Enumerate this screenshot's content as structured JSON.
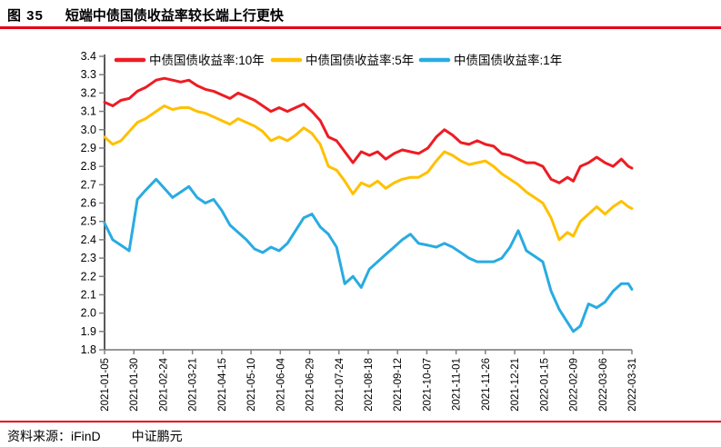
{
  "header": {
    "figure_label": "图 35",
    "title": "短端中债国债收益率较长端上行更快"
  },
  "footer": {
    "source": "资料来源：iFinD",
    "brand": "中证鹏元"
  },
  "colors": {
    "rule_red": "#E60012",
    "axis_line": "#595959",
    "tick_mark": "#808080",
    "label_text": "#000000",
    "background": "#FFFFFF"
  },
  "chart_data": {
    "type": "line",
    "title": "",
    "xlabel": "",
    "ylabel": "",
    "ylim": [
      1.8,
      3.4
    ],
    "y_tick_step": 0.1,
    "grid": false,
    "legend_position": "top",
    "x_tick_labels": [
      "2021-01-05",
      "2021-01-30",
      "2021-02-24",
      "2021-03-21",
      "2021-04-15",
      "2021-05-10",
      "2021-06-04",
      "2021-06-29",
      "2021-07-24",
      "2021-08-18",
      "2021-09-12",
      "2021-10-07",
      "2021-11-01",
      "2021-11-26",
      "2021-12-21",
      "2022-01-15",
      "2022-02-09",
      "2022-03-06",
      "2022-03-31"
    ],
    "dates": [
      "2021-01-05",
      "2021-01-12",
      "2021-01-19",
      "2021-01-26",
      "2021-02-02",
      "2021-02-09",
      "2021-02-18",
      "2021-02-25",
      "2021-03-04",
      "2021-03-11",
      "2021-03-18",
      "2021-03-25",
      "2021-04-01",
      "2021-04-08",
      "2021-04-15",
      "2021-04-22",
      "2021-04-29",
      "2021-05-06",
      "2021-05-13",
      "2021-05-20",
      "2021-05-27",
      "2021-06-03",
      "2021-06-10",
      "2021-06-17",
      "2021-06-24",
      "2021-07-01",
      "2021-07-08",
      "2021-07-15",
      "2021-07-22",
      "2021-07-29",
      "2021-08-05",
      "2021-08-12",
      "2021-08-19",
      "2021-08-26",
      "2021-09-02",
      "2021-09-09",
      "2021-09-16",
      "2021-09-23",
      "2021-09-30",
      "2021-10-08",
      "2021-10-15",
      "2021-10-22",
      "2021-10-29",
      "2021-11-05",
      "2021-11-12",
      "2021-11-19",
      "2021-11-26",
      "2021-12-03",
      "2021-12-10",
      "2021-12-17",
      "2021-12-24",
      "2021-12-31",
      "2022-01-07",
      "2022-01-14",
      "2022-01-21",
      "2022-01-28",
      "2022-02-04",
      "2022-02-09",
      "2022-02-15",
      "2022-02-22",
      "2022-03-01",
      "2022-03-08",
      "2022-03-15",
      "2022-03-22",
      "2022-03-28",
      "2022-03-31"
    ],
    "series": [
      {
        "name": "中债国债收益率:10年",
        "color": "#ED1C24",
        "values": [
          3.15,
          3.13,
          3.16,
          3.17,
          3.21,
          3.23,
          3.27,
          3.28,
          3.27,
          3.26,
          3.27,
          3.24,
          3.22,
          3.21,
          3.19,
          3.17,
          3.2,
          3.18,
          3.16,
          3.13,
          3.1,
          3.12,
          3.1,
          3.12,
          3.14,
          3.1,
          3.05,
          2.96,
          2.94,
          2.88,
          2.82,
          2.88,
          2.86,
          2.88,
          2.84,
          2.87,
          2.89,
          2.88,
          2.87,
          2.9,
          2.96,
          3.0,
          2.97,
          2.93,
          2.92,
          2.94,
          2.92,
          2.91,
          2.87,
          2.86,
          2.84,
          2.82,
          2.82,
          2.8,
          2.73,
          2.71,
          2.74,
          2.72,
          2.8,
          2.82,
          2.85,
          2.82,
          2.8,
          2.84,
          2.8,
          2.79
        ]
      },
      {
        "name": "中债国债收益率:5年",
        "color": "#FFC000",
        "values": [
          2.96,
          2.92,
          2.94,
          2.99,
          3.04,
          3.06,
          3.1,
          3.13,
          3.11,
          3.12,
          3.12,
          3.1,
          3.09,
          3.07,
          3.05,
          3.03,
          3.06,
          3.04,
          3.02,
          2.99,
          2.94,
          2.96,
          2.94,
          2.97,
          3.01,
          2.98,
          2.92,
          2.8,
          2.78,
          2.72,
          2.65,
          2.71,
          2.69,
          2.72,
          2.68,
          2.71,
          2.73,
          2.74,
          2.74,
          2.77,
          2.83,
          2.88,
          2.86,
          2.83,
          2.81,
          2.82,
          2.83,
          2.8,
          2.76,
          2.73,
          2.7,
          2.66,
          2.63,
          2.6,
          2.52,
          2.4,
          2.44,
          2.42,
          2.5,
          2.54,
          2.58,
          2.54,
          2.58,
          2.61,
          2.58,
          2.57
        ]
      },
      {
        "name": "中债国债收益率:1年",
        "color": "#29ABE2",
        "values": [
          2.49,
          2.4,
          2.37,
          2.34,
          2.62,
          2.67,
          2.73,
          2.68,
          2.63,
          2.66,
          2.69,
          2.63,
          2.6,
          2.62,
          2.56,
          2.48,
          2.44,
          2.4,
          2.35,
          2.33,
          2.36,
          2.34,
          2.38,
          2.45,
          2.52,
          2.54,
          2.47,
          2.43,
          2.36,
          2.16,
          2.2,
          2.14,
          2.24,
          2.28,
          2.32,
          2.36,
          2.4,
          2.43,
          2.38,
          2.37,
          2.36,
          2.38,
          2.36,
          2.33,
          2.3,
          2.28,
          2.28,
          2.28,
          2.3,
          2.36,
          2.45,
          2.34,
          2.31,
          2.28,
          2.12,
          2.02,
          1.95,
          1.9,
          1.93,
          2.05,
          2.03,
          2.06,
          2.12,
          2.16,
          2.16,
          2.13
        ]
      }
    ]
  }
}
